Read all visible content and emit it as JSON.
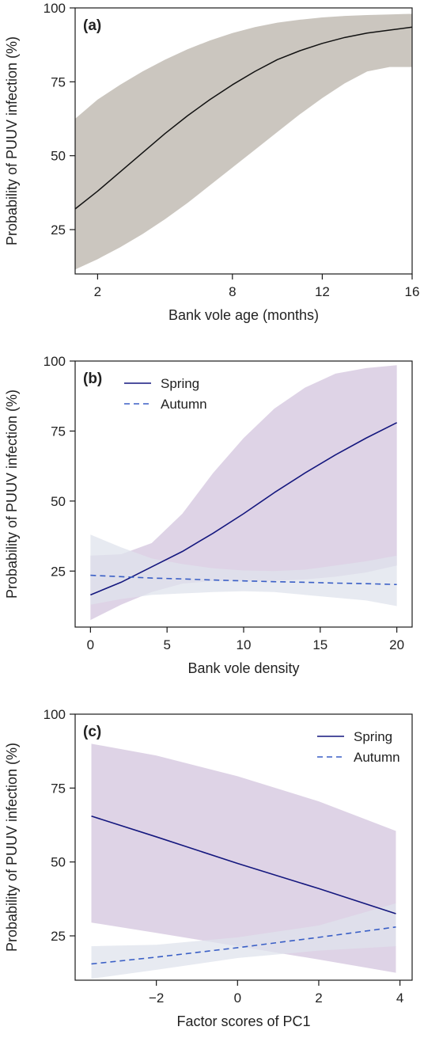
{
  "colors": {
    "band_a": "#cbc6bf",
    "spring_band": "#d8cbe2",
    "autumn_band": "#dfe3ec",
    "overlap_band": "#c2c2da",
    "spring_line": "#14177e",
    "autumn_line": "#3a5fc6",
    "mean_a": "#111111"
  },
  "chart_data": [
    {
      "type": "line",
      "panel_label": "(a)",
      "xlabel": "Bank vole age (months)",
      "ylabel": "Probability of PUUV infection (%)",
      "xlim": [
        1,
        16
      ],
      "ylim": [
        10,
        100
      ],
      "xticks": [
        2,
        8,
        12,
        16
      ],
      "xtick_labels": [
        "2",
        "8",
        "12",
        "16"
      ],
      "yticks": [
        25,
        50,
        75,
        100
      ],
      "ytick_labels": [
        "25",
        "50",
        "75",
        "100"
      ],
      "grid": false,
      "legend": null,
      "series": [
        {
          "x": [
            1,
            2,
            3,
            4,
            5,
            6,
            7,
            8,
            9,
            10,
            11,
            12,
            13,
            14,
            15,
            16
          ],
          "y": [
            32,
            38,
            44.5,
            51,
            57.5,
            63.5,
            69,
            74,
            78.5,
            82.5,
            85.5,
            88,
            90,
            91.5,
            92.5,
            93.5
          ],
          "lower": [
            11.5,
            15,
            19,
            23.5,
            28.5,
            34,
            40,
            46,
            52,
            58,
            64,
            69.5,
            74.5,
            78.5,
            80,
            80
          ],
          "upper": [
            62.5,
            69,
            74,
            78.5,
            82.5,
            86,
            89,
            91.5,
            93.5,
            95,
            96,
            96.8,
            97.3,
            97.6,
            97.8,
            98
          ],
          "style": "solid"
        }
      ]
    },
    {
      "type": "line",
      "panel_label": "(b)",
      "xlabel": "Bank vole density",
      "ylabel": "Probability of PUUV infection (%)",
      "xlim": [
        -1,
        21
      ],
      "ylim": [
        5,
        100
      ],
      "xticks": [
        0,
        5,
        10,
        15,
        20
      ],
      "xtick_labels": [
        "0",
        "5",
        "10",
        "15",
        "20"
      ],
      "yticks": [
        25,
        50,
        75,
        100
      ],
      "ytick_labels": [
        "25",
        "50",
        "75",
        "100"
      ],
      "grid": false,
      "legend": "top-left",
      "series": [
        {
          "name": "Spring",
          "x": [
            0,
            2,
            4,
            6,
            8,
            10,
            12,
            14,
            16,
            18,
            20
          ],
          "y": [
            16.5,
            21,
            26.5,
            32,
            38.5,
            45.5,
            53,
            60,
            66.5,
            72.5,
            78
          ],
          "lower": [
            7.5,
            13,
            17.5,
            20.5,
            21.5,
            21.5,
            21.5,
            22,
            23,
            24.5,
            27
          ],
          "upper": [
            30.5,
            31,
            35,
            45.5,
            60,
            72.5,
            83,
            90.5,
            95.5,
            97.5,
            98.5
          ],
          "style": "solid"
        },
        {
          "name": "Autumn",
          "x": [
            0,
            2,
            4,
            6,
            8,
            10,
            12,
            14,
            16,
            18,
            20
          ],
          "y": [
            23.5,
            23,
            22.5,
            22.2,
            21.8,
            21.5,
            21.2,
            21,
            20.7,
            20.5,
            20.2
          ],
          "lower": [
            13,
            15,
            16.5,
            17,
            17.5,
            17.8,
            17.5,
            16.5,
            15.5,
            14.5,
            12.5
          ],
          "upper": [
            38,
            33.5,
            29.5,
            27.5,
            26,
            25.2,
            25,
            25.5,
            27,
            28.5,
            30.5
          ],
          "style": "dashed"
        }
      ]
    },
    {
      "type": "line",
      "panel_label": "(c)",
      "xlabel": "Factor scores of PC1",
      "ylabel": "Probability of PUUV infection (%)",
      "xlim": [
        -4,
        4.3
      ],
      "ylim": [
        10,
        100
      ],
      "xticks": [
        -2,
        0,
        2,
        4
      ],
      "xtick_labels": [
        "−2",
        "0",
        "2",
        "4"
      ],
      "yticks": [
        25,
        50,
        75,
        100
      ],
      "ytick_labels": [
        "25",
        "50",
        "75",
        "100"
      ],
      "grid": false,
      "legend": "top-right",
      "series": [
        {
          "name": "Spring",
          "x": [
            -3.6,
            -2,
            0,
            2,
            3.9
          ],
          "y": [
            65.5,
            58.5,
            49.5,
            41,
            32.5
          ],
          "lower": [
            29.5,
            26,
            21.5,
            17,
            12.5
          ],
          "upper": [
            90,
            86,
            79,
            70.5,
            60.5
          ],
          "style": "solid"
        },
        {
          "name": "Autumn",
          "x": [
            -3.6,
            -2,
            0,
            2,
            3.9
          ],
          "y": [
            15.5,
            17.8,
            21,
            24.5,
            28
          ],
          "lower": [
            10.5,
            13.5,
            17.5,
            20,
            21.5
          ],
          "upper": [
            21.5,
            22,
            24.5,
            28.5,
            36
          ],
          "style": "dashed"
        }
      ]
    }
  ]
}
